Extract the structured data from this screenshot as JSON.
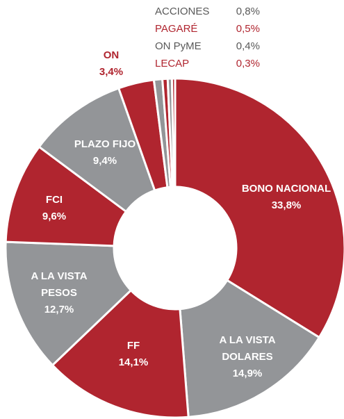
{
  "chart_data": {
    "type": "donut",
    "categories": [
      "BONO NACIONAL",
      "A LA VISTA DOLARES",
      "FF",
      "A LA VISTA PESOS",
      "FCI",
      "PLAZO FIJO",
      "ON",
      "ACCIONES",
      "PAGARÉ",
      "ON PyME",
      "LECAP"
    ],
    "values": [
      33.8,
      14.9,
      14.1,
      12.7,
      9.6,
      9.4,
      3.4,
      0.8,
      0.5,
      0.4,
      0.3
    ],
    "value_labels": [
      "33,8%",
      "14,9%",
      "14,1%",
      "12,7%",
      "9,6%",
      "9,4%",
      "3,4%",
      "0,8%",
      "0,5%",
      "0,4%",
      "0,3%"
    ],
    "colors": [
      "#b0252f",
      "#939598",
      "#b0252f",
      "#939598",
      "#b0252f",
      "#939598",
      "#b0252f",
      "#939598",
      "#b0252f",
      "#939598",
      "#b0252f"
    ]
  }
}
